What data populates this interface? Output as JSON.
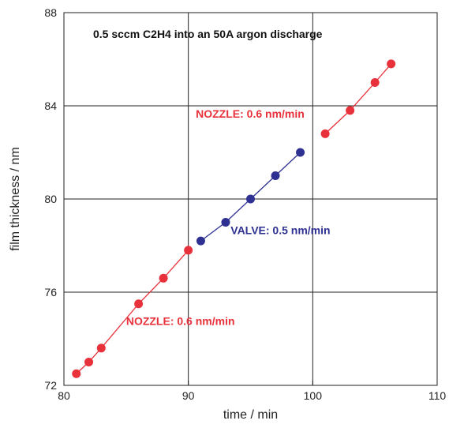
{
  "chart_data": {
    "type": "scatter",
    "title": "0.5 sccm C2H4 into an 50A argon discharge",
    "xlabel": "time / min",
    "ylabel": "film thickness / nm",
    "xlim": [
      80,
      110
    ],
    "ylim": [
      72,
      88
    ],
    "xticks": [
      80,
      90,
      100,
      110
    ],
    "yticks": [
      72,
      76,
      80,
      84,
      88
    ],
    "xtick_labels": [
      "80",
      "90",
      "100",
      "110"
    ],
    "ytick_labels": [
      "72",
      "76",
      "80",
      "84",
      "88"
    ],
    "grid": true,
    "series": [
      {
        "color": "#e8313a",
        "x": [
          81,
          82,
          83,
          86,
          88,
          90
        ],
        "y": [
          72.5,
          73.0,
          73.6,
          75.5,
          76.6,
          77.8
        ]
      },
      {
        "color": "#2e3192",
        "x": [
          91,
          93,
          95,
          97,
          99
        ],
        "y": [
          78.2,
          79.0,
          80.0,
          81.0,
          82.0
        ]
      },
      {
        "color": "#e8313a",
        "x": [
          101,
          103,
          105,
          106.3
        ],
        "y": [
          82.8,
          83.8,
          85.0,
          85.8
        ]
      }
    ],
    "annotations": [
      {
        "text": "NOZZLE: 0.6 nm/min",
        "x": 85,
        "y": 74.6,
        "color": "#e8313a"
      },
      {
        "text": "VALVE: 0.5 nm/min",
        "x": 93.4,
        "y": 78.5,
        "color": "#2e3192"
      },
      {
        "text": "NOZZLE: 0.6 nm/min",
        "x": 90.6,
        "y": 83.5,
        "color": "#e8313a"
      }
    ]
  }
}
